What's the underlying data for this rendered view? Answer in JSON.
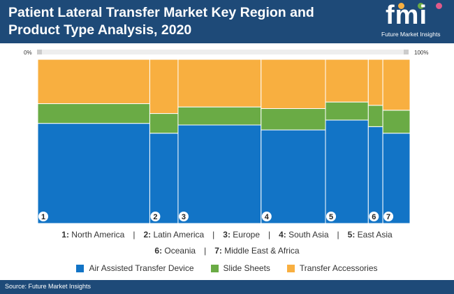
{
  "header": {
    "title": "Patient Lateral Transfer Market Key Region and Product Type Analysis, 2020"
  },
  "logo": {
    "letters": "fmi",
    "subtitle": "Future Market Insights"
  },
  "axis": {
    "left_label": "0%",
    "right_label": "100%"
  },
  "chart_data": {
    "type": "bar",
    "subtype": "marimekko",
    "title": "Patient Lateral Transfer Market Key Region and Product Type Analysis, 2020",
    "categories": [
      "1",
      "2",
      "3",
      "4",
      "5",
      "6",
      "7"
    ],
    "category_widths": [
      30.1,
      7.6,
      22.3,
      17.3,
      11.5,
      3.9,
      7.3
    ],
    "series": [
      {
        "name": "Air Assisted Transfer Device",
        "color": "#1274c6",
        "values": [
          61,
          55,
          60,
          57,
          63,
          59,
          55
        ]
      },
      {
        "name": "Slide Sheets",
        "color": "#6aab45",
        "values": [
          12,
          12,
          11,
          13,
          11,
          13,
          14
        ]
      },
      {
        "name": "Transfer Accessories",
        "color": "#f8af40",
        "values": [
          27,
          33,
          29,
          30,
          26,
          28,
          31
        ]
      }
    ],
    "ylim": [
      0,
      100
    ]
  },
  "region_legend": {
    "row1": [
      {
        "num": "1:",
        "name": "North America"
      },
      {
        "num": "2:",
        "name": "Latin America"
      },
      {
        "num": "3:",
        "name": "Europe"
      },
      {
        "num": "4:",
        "name": "South Asia"
      },
      {
        "num": "5:",
        "name": "East Asia"
      }
    ],
    "row2": [
      {
        "num": "6:",
        "name": "Oceania"
      },
      {
        "num": "7:",
        "name": "Middle East & Africa"
      }
    ],
    "separator": "|"
  },
  "footer": {
    "source": "Source: Future Market Insights"
  }
}
